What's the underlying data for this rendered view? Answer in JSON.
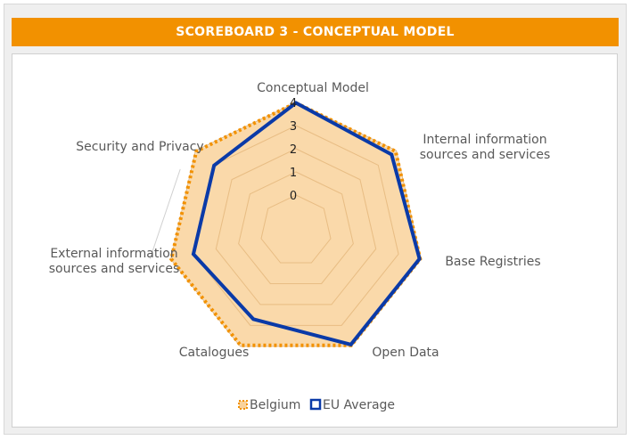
{
  "title": "SCOREBOARD 3 - CONCEPTUAL MODEL",
  "colors": {
    "banner": "#f29100",
    "belgium_fill": "#f9d29b",
    "belgium_line": "#f29100",
    "eu_line": "#0a3aa8",
    "grid": "#d9c3a0"
  },
  "chart_data": {
    "type": "radar",
    "title": "",
    "categories": [
      [
        "Conceptual Model"
      ],
      [
        "Internal information",
        "sources and services"
      ],
      [
        "Base Registries"
      ],
      [
        "Open Data"
      ],
      [
        "Catalogues"
      ],
      [
        "External information",
        "sources and services"
      ],
      [
        "Security and Privacy"
      ]
    ],
    "rlim": [
      0,
      4
    ],
    "ticks": [
      "0",
      "1",
      "2",
      "3",
      "4"
    ],
    "series": [
      {
        "name": "Belgium",
        "style": "dotted-fill",
        "values": [
          3.98,
          3.96,
          3.96,
          3.96,
          3.96,
          3.98,
          3.96
        ]
      },
      {
        "name": "EU Average",
        "style": "solid",
        "values": [
          3.98,
          3.74,
          3.93,
          3.92,
          2.7,
          3.0,
          2.98
        ]
      }
    ],
    "legend": {
      "placement": "bottom"
    }
  }
}
